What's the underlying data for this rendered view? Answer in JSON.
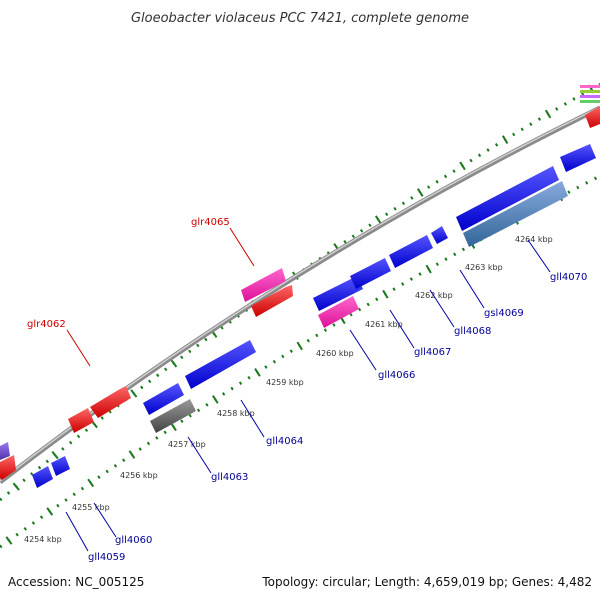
{
  "title": "Gloeobacter violaceus PCC 7421, complete genome",
  "footer": {
    "accession": "Accession: NC_005125",
    "topology": "Topology: circular; Length: 4,659,019 bp; Genes: 4,482"
  },
  "colors": {
    "backbone": "#8a8a8a",
    "dots": "#1b7a1b",
    "label_forward": "#cc0000",
    "label_reverse": "#000099"
  },
  "scale_ticks": [
    "4254 kbp",
    "4255 kbp",
    "4256 kbp",
    "4257 kbp",
    "4258 kbp",
    "4259 kbp",
    "4260 kbp",
    "4261 kbp",
    "4262 kbp",
    "4263 kbp",
    "4264 kbp"
  ],
  "gene_labels": [
    {
      "name": "glr4062",
      "strand": "forward"
    },
    {
      "name": "glr4065",
      "strand": "forward"
    },
    {
      "name": "gll4059",
      "strand": "reverse"
    },
    {
      "name": "gll4060",
      "strand": "reverse"
    },
    {
      "name": "gll4063",
      "strand": "reverse"
    },
    {
      "name": "gll4064",
      "strand": "reverse"
    },
    {
      "name": "gll4066",
      "strand": "reverse"
    },
    {
      "name": "gll4067",
      "strand": "reverse"
    },
    {
      "name": "gll4068",
      "strand": "reverse"
    },
    {
      "name": "gsl4069",
      "strand": "reverse"
    },
    {
      "name": "gll4070",
      "strand": "reverse"
    }
  ]
}
